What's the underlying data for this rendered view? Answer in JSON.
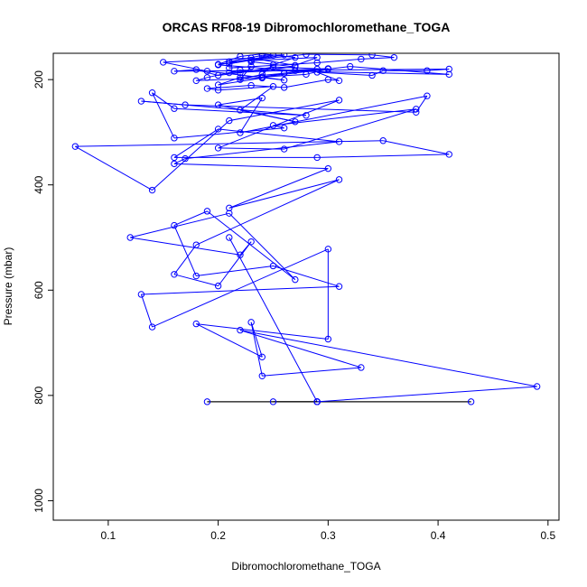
{
  "chart_data": {
    "type": "scatter",
    "title": "ORCAS RF08-19 Dibromochloromethane_TOGA",
    "xlabel": "Dibromochloromethane_TOGA",
    "ylabel": "Pressure (mbar)",
    "xlim": [
      0.05,
      0.51
    ],
    "ylim": [
      1037,
      150
    ],
    "y_reversed": true,
    "x_ticks": [
      0.1,
      0.2,
      0.3,
      0.4,
      0.5
    ],
    "x_tick_labels": [
      "0.1",
      "0.2",
      "0.3",
      "0.4",
      "0.5"
    ],
    "y_ticks": [
      200,
      400,
      600,
      800,
      1000
    ],
    "y_tick_labels": [
      "200",
      "400",
      "600",
      "800",
      "1000"
    ],
    "grid": false,
    "legend": "none",
    "colors": {
      "series": "#0000ff",
      "ground_segment": "#000000",
      "axes": "#000000"
    },
    "series": [
      {
        "marker": "open-circle",
        "line": true,
        "x": [
          0.21,
          0.29,
          0.43,
          0.29,
          0.25,
          0.29,
          0.19,
          0.29,
          0.49,
          0.22,
          0.33,
          0.24,
          0.23,
          0.24,
          0.18,
          0.3,
          0.3,
          0.14,
          0.13,
          0.31,
          0.25,
          0.18,
          0.16,
          0.19,
          0.27,
          0.21,
          0.12,
          0.22,
          0.23,
          0.2,
          0.16,
          0.18,
          0.31,
          0.21,
          0.3,
          0.16,
          0.17,
          0.31,
          0.2,
          0.16,
          0.29,
          0.41,
          0.35,
          0.07,
          0.14,
          0.21,
          0.31,
          0.2,
          0.26,
          0.38,
          0.25,
          0.26,
          0.16,
          0.14,
          0.16,
          0.28,
          0.13,
          0.17,
          0.38,
          0.39,
          0.22,
          0.24,
          0.2,
          0.27,
          0.22,
          0.25,
          0.2,
          0.19,
          0.23,
          0.26,
          0.3,
          0.31,
          0.29,
          0.34,
          0.35,
          0.39,
          0.41,
          0.16,
          0.18,
          0.2,
          0.22,
          0.25,
          0.3,
          0.28,
          0.24,
          0.26,
          0.19,
          0.15,
          0.23,
          0.27,
          0.29,
          0.21,
          0.24,
          0.26,
          0.23,
          0.2,
          0.22,
          0.24,
          0.27,
          0.25,
          0.24,
          0.22,
          0.23,
          0.21,
          0.29,
          0.33,
          0.36,
          0.34,
          0.28,
          0.23,
          0.21,
          0.25,
          0.2,
          0.27,
          0.3,
          0.26,
          0.24,
          0.32,
          0.41,
          0.22,
          0.19,
          0.18,
          0.24,
          0.2,
          0.22,
          0.26,
          0.29,
          0.21,
          0.27,
          0.23
        ],
        "y": [
          500,
          812,
          812,
          812,
          812,
          812,
          812,
          812,
          783,
          676,
          747,
          763,
          661,
          727,
          664,
          693,
          522,
          670,
          608,
          593,
          554,
          573,
          477,
          450,
          580,
          454,
          500,
          533,
          508,
          592,
          570,
          514,
          390,
          444,
          369,
          360,
          350,
          318,
          294,
          348,
          348,
          342,
          316,
          327,
          410,
          278,
          239,
          330,
          332,
          256,
          287,
          292,
          311,
          225,
          255,
          268,
          241,
          248,
          262,
          231,
          301,
          235,
          248,
          280,
          258,
          213,
          220,
          217,
          211,
          215,
          200,
          202,
          186,
          192,
          183,
          183,
          180,
          184,
          181,
          192,
          187,
          176,
          180,
          190,
          195,
          201,
          184,
          167,
          159,
          173,
          158,
          166,
          154,
          153,
          163,
          171,
          156,
          151,
          158,
          172,
          190,
          200,
          175,
          178,
          168,
          161,
          158,
          153,
          152,
          163,
          170,
          154,
          172,
          183,
          179,
          188,
          195,
          175,
          190,
          182,
          196,
          202,
          197,
          210,
          196,
          188,
          180,
          187,
          176,
          166
        ]
      }
    ]
  }
}
